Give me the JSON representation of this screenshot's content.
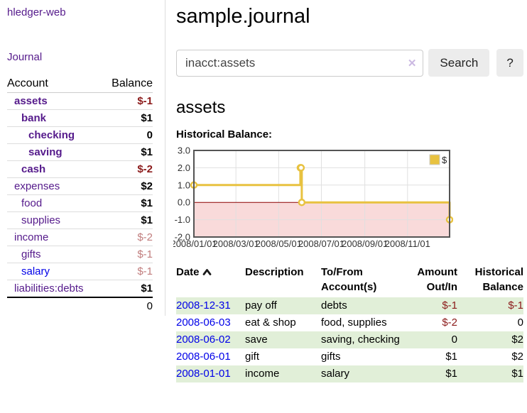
{
  "app": {
    "brand": "hledger-web",
    "nav": {
      "journal": "Journal"
    }
  },
  "sidebar": {
    "header": {
      "account": "Account",
      "balance": "Balance"
    },
    "accounts": [
      {
        "name": "assets",
        "balance": "$-1"
      },
      {
        "name": "bank",
        "balance": "$1"
      },
      {
        "name": "checking",
        "balance": "0"
      },
      {
        "name": "saving",
        "balance": "$1"
      },
      {
        "name": "cash",
        "balance": "$-2"
      },
      {
        "name": "expenses",
        "balance": "$2"
      },
      {
        "name": "food",
        "balance": "$1"
      },
      {
        "name": "supplies",
        "balance": "$1"
      },
      {
        "name": "income",
        "balance": "$-2"
      },
      {
        "name": "gifts",
        "balance": "$-1"
      },
      {
        "name": "salary",
        "balance": "$-1"
      },
      {
        "name": "liabilities:debts",
        "balance": "$1"
      }
    ],
    "total": "0"
  },
  "main": {
    "title": "sample.journal",
    "search": {
      "value": "inacct:assets",
      "clear_icon": "✕",
      "button": "Search",
      "help_button": "?"
    },
    "account_heading": "assets",
    "chart_label": "Historical Balance:"
  },
  "chart_data": {
    "type": "line",
    "title": "Historical Balance:",
    "steps": true,
    "x_range": [
      "2008-01-01",
      "2008-12-31"
    ],
    "ylim": [
      -2,
      3
    ],
    "y_ticks": [
      "3.0",
      "2.0",
      "1.0",
      "0.0",
      "-1.0",
      "-2.0"
    ],
    "x_ticks": [
      "2008/01/01",
      "2008/03/01",
      "2008/05/01",
      "2008/07/01",
      "2008/09/01",
      "2008/11/01"
    ],
    "series": [
      {
        "name": "$",
        "color": "#E8C240",
        "points": [
          [
            "2008-01-01",
            1
          ],
          [
            "2008-06-01",
            2
          ],
          [
            "2008-06-02",
            2
          ],
          [
            "2008-06-03",
            0
          ],
          [
            "2008-12-31",
            -1
          ]
        ]
      }
    ],
    "legend": "$",
    "legend_position": "top-right",
    "grid": true,
    "colors": {
      "grid": "#e0e0e0",
      "border": "#545454",
      "zero_line": "#8B0000",
      "negative_region_fill": "#F9DADA",
      "marker_fill": "#ffffff",
      "tick_text": "#333333"
    }
  },
  "register": {
    "columns": {
      "date": "Date",
      "description": "Description",
      "accounts": "To/From\nAccount(s)",
      "amount": "Amount\nOut/In",
      "balance": "Historical\nBalance"
    },
    "rows": [
      {
        "date": "2008-12-31",
        "description": "pay off",
        "accounts": "debts",
        "amount": "$-1",
        "balance": "$-1"
      },
      {
        "date": "2008-06-03",
        "description": "eat & shop",
        "accounts": "food, supplies",
        "amount": "$-2",
        "balance": "0"
      },
      {
        "date": "2008-06-02",
        "description": "save",
        "accounts": "saving, checking",
        "amount": "0",
        "balance": "$2"
      },
      {
        "date": "2008-06-01",
        "description": "gift",
        "accounts": "gifts",
        "amount": "$1",
        "balance": "$2"
      },
      {
        "date": "2008-01-01",
        "description": "income",
        "accounts": "salary",
        "amount": "$1",
        "balance": "$1"
      }
    ]
  }
}
